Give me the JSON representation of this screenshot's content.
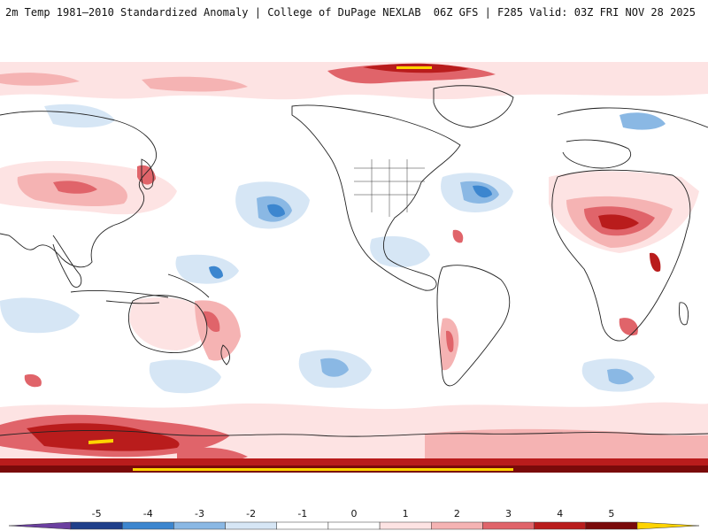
{
  "header": {
    "title_left": "2m Temp 1981–2010 Standardized Anomaly | College of DuPage NEXLAB",
    "title_right": "06Z GFS | F285 Valid: 03Z FRI NOV 28 2025"
  },
  "map": {
    "projection": "global equirectangular, centered on the Pacific",
    "palette": {
      "neg5": "#6b3fa0",
      "neg4": "#1f3f8a",
      "neg3": "#3c86cf",
      "neg2": "#8ab8e4",
      "neg1": "#d6e6f5",
      "zero": "#ffffff",
      "pos1": "#fde3e3",
      "pos2": "#f5b3b3",
      "pos3": "#e0646a",
      "pos4": "#b91c1c",
      "pos5": "#7a0a0a",
      "max": "#ffd400",
      "coast": "#222222"
    }
  },
  "colorbar": {
    "ticks": [
      "-5",
      "-4",
      "-3",
      "-2",
      "-1",
      "0",
      "1",
      "2",
      "3",
      "4",
      "5"
    ],
    "colors": [
      "#6b3fa0",
      "#1f3f8a",
      "#3c86cf",
      "#8ab8e4",
      "#d6e6f5",
      "#ffffff",
      "#ffffff",
      "#fde3e3",
      "#f5b3b3",
      "#e0646a",
      "#b91c1c",
      "#7a0a0a",
      "#ffd400"
    ]
  }
}
